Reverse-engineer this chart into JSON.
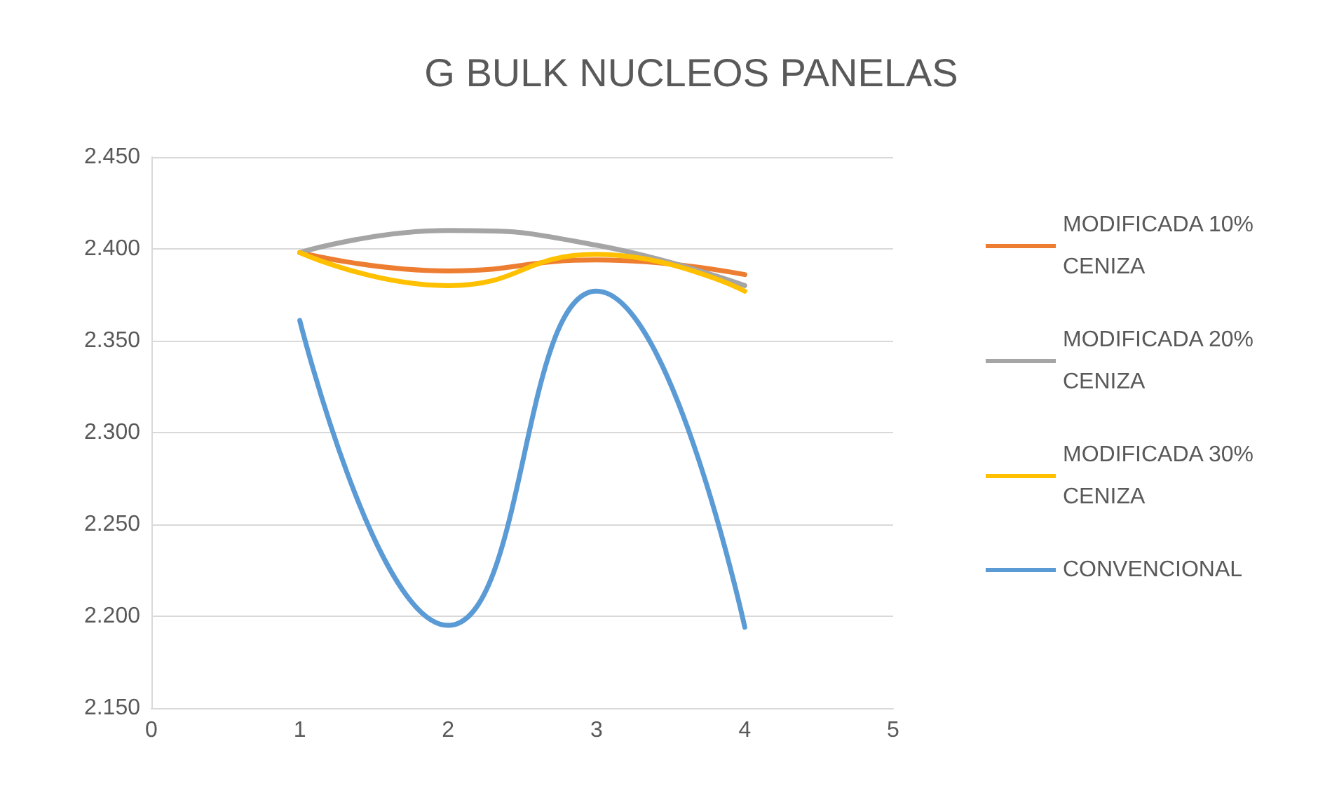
{
  "chart_data": {
    "type": "line",
    "title": "G BULK NUCLEOS PANELAS",
    "x": [
      1,
      2,
      3,
      4
    ],
    "series": [
      {
        "name": "MODIFICADA 10% CENIZA",
        "color": "#ed7d31",
        "values": [
          2.398,
          2.388,
          2.394,
          2.386
        ]
      },
      {
        "name": "MODIFICADA 20% CENIZA",
        "color": "#a5a5a5",
        "values": [
          2.398,
          2.41,
          2.402,
          2.38
        ]
      },
      {
        "name": "MODIFICADA 30% CENIZA",
        "color": "#ffc000",
        "values": [
          2.398,
          2.38,
          2.397,
          2.377
        ]
      },
      {
        "name": "CONVENCIONAL",
        "color": "#5b9bd5",
        "values": [
          2.361,
          2.195,
          2.377,
          2.194
        ]
      }
    ],
    "xlim": [
      0,
      5
    ],
    "xticks": [
      0,
      1,
      2,
      3,
      4,
      5
    ],
    "ylim": [
      2.15,
      2.45
    ],
    "yticks": [
      {
        "value": 2.15,
        "label": "2.150"
      },
      {
        "value": 2.2,
        "label": "2.200"
      },
      {
        "value": 2.25,
        "label": "2.250"
      },
      {
        "value": 2.3,
        "label": "2.300"
      },
      {
        "value": 2.35,
        "label": "2.350"
      },
      {
        "value": 2.4,
        "label": "2.400"
      },
      {
        "value": 2.45,
        "label": "2.450"
      }
    ],
    "grid": "y",
    "legend": "right",
    "marker": "none",
    "line_style": "solid"
  }
}
